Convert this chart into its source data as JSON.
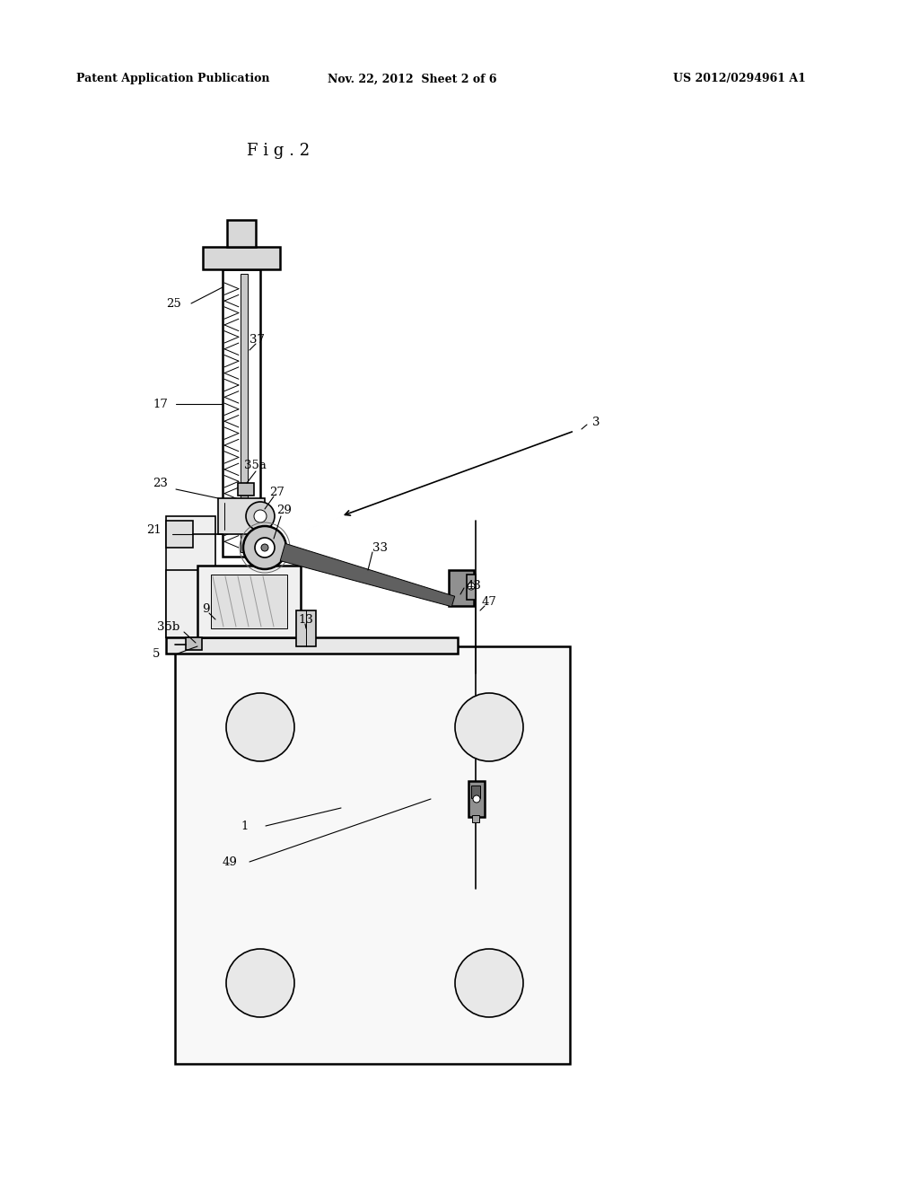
{
  "background_color": "#ffffff",
  "header_left": "Patent Application Publication",
  "header_center": "Nov. 22, 2012  Sheet 2 of 6",
  "header_right": "US 2012/0294961 A1",
  "fig_label": "F i g . 2"
}
